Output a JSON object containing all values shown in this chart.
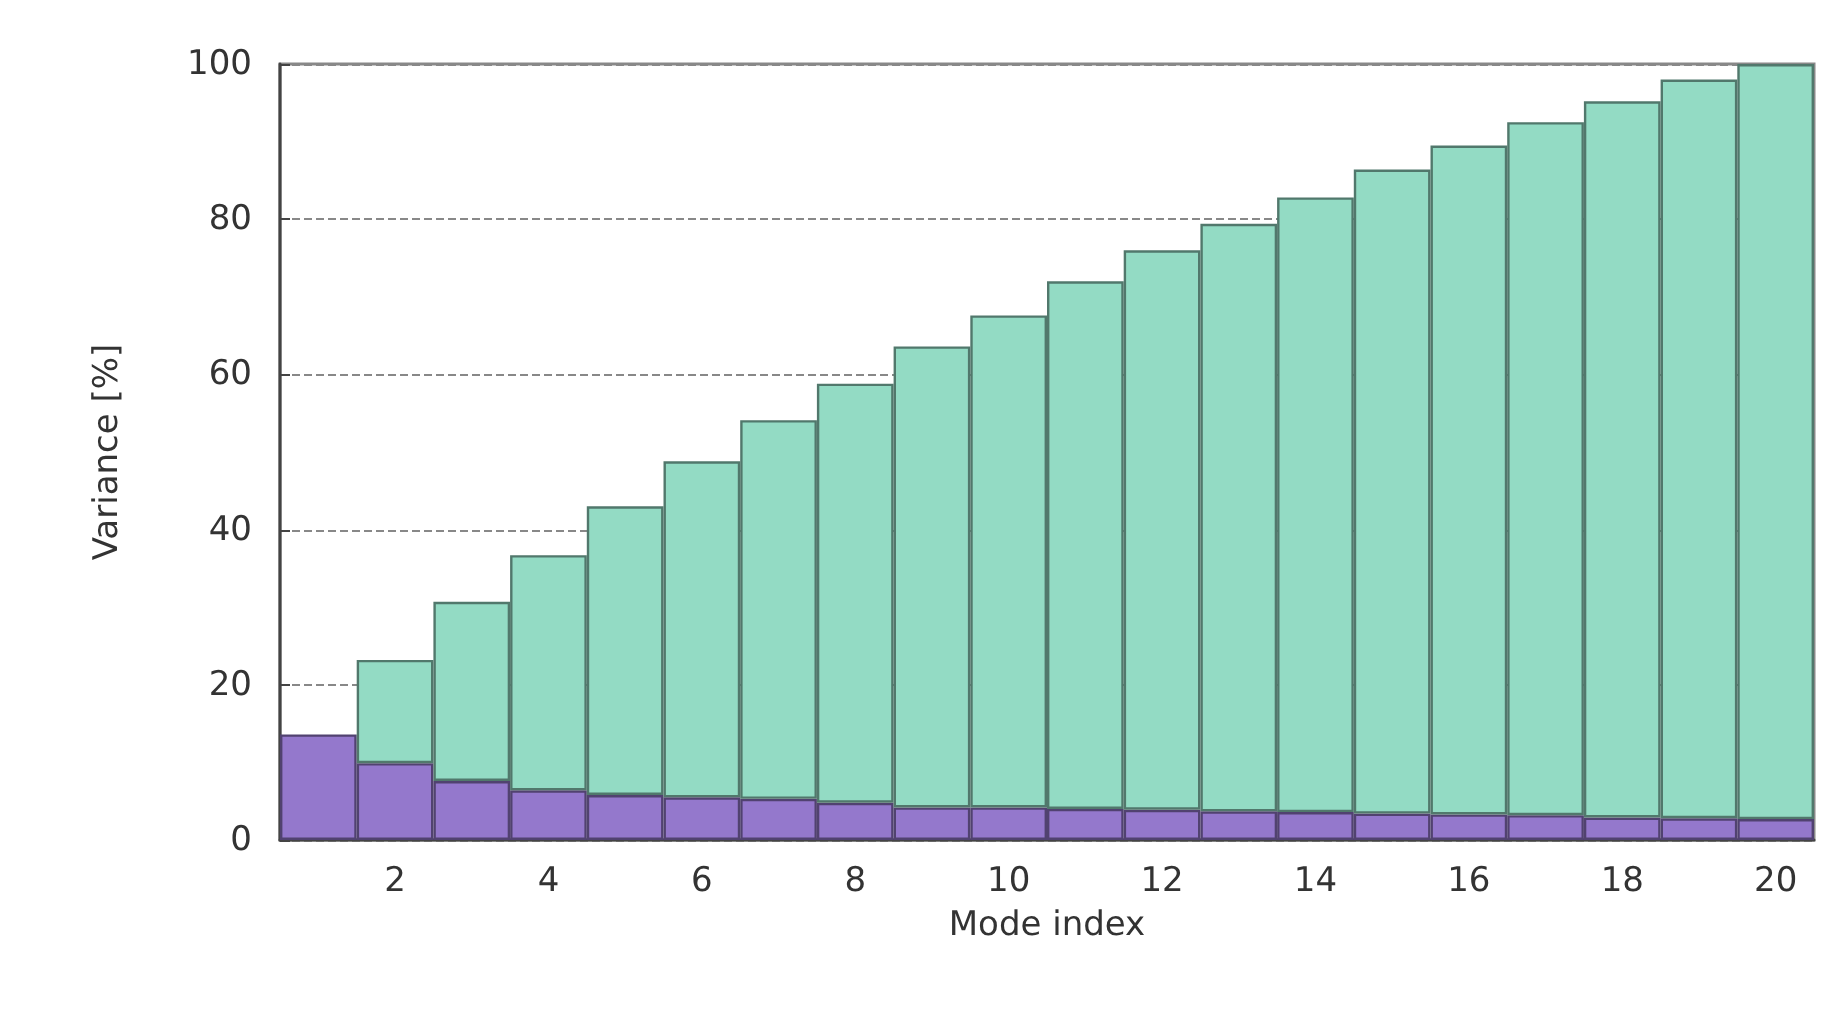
{
  "chart_data": {
    "type": "bar",
    "xlabel": "Mode index",
    "ylabel": "Variance [%]",
    "categories": [
      null,
      "2",
      null,
      "4",
      null,
      "6",
      null,
      "8",
      null,
      "10",
      null,
      "12",
      null,
      "14",
      null,
      "16",
      null,
      "18",
      null,
      "20"
    ],
    "series": [
      {
        "color": "#9478cc",
        "values": [
          13.6,
          9.9,
          7.6,
          6.4,
          5.8,
          5.5,
          5.3,
          4.8,
          4.2,
          4.2,
          4.0,
          3.9,
          3.7,
          3.6,
          3.4,
          3.3,
          3.2,
          2.9,
          2.8,
          2.7
        ]
      },
      {
        "color": "#93dbc4",
        "values": [
          null,
          13.3,
          23.1,
          30.3,
          37.2,
          43.3,
          48.8,
          54.0,
          59.4,
          63.4,
          68.0,
          72.1,
          75.7,
          79.2,
          83.0,
          86.2,
          89.3,
          92.3,
          95.2,
          97.3
        ]
      }
    ],
    "stacked": true,
    "ylim": [
      0,
      100
    ],
    "yticks": [
      0,
      20,
      40,
      60,
      80,
      100
    ],
    "grid": "y",
    "line_style": "dashed"
  }
}
